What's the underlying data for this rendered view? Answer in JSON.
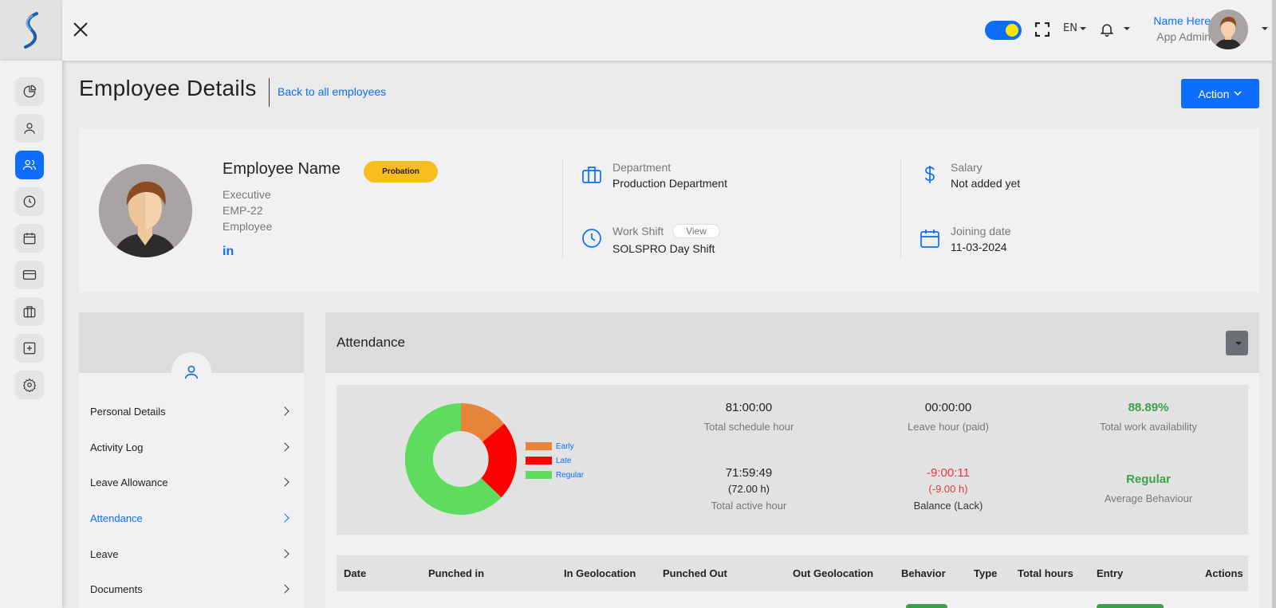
{
  "topbar": {
    "language": "EN",
    "user_name": "Name Here",
    "user_role": "App Admin"
  },
  "header": {
    "title": "Employee Details",
    "back_link": "Back to all employees",
    "action_label": "Action"
  },
  "profile": {
    "name": "Employee Name",
    "status_badge": "Probation",
    "designation": "Executive",
    "employee_id": "EMP-22",
    "role": "Employee",
    "linkedin": "in",
    "department_label": "Department",
    "department_value": "Production Department",
    "work_shift_label": "Work Shift",
    "work_shift_view": "View",
    "work_shift_value": "SOLSPRO Day Shift",
    "salary_label": "Salary",
    "salary_value": "Not added yet",
    "joining_label": "Joining date",
    "joining_value": "11-03-2024"
  },
  "menu": {
    "items": [
      {
        "label": "Personal Details"
      },
      {
        "label": "Activity Log"
      },
      {
        "label": "Leave Allowance"
      },
      {
        "label": "Attendance"
      },
      {
        "label": "Leave"
      },
      {
        "label": "Documents"
      }
    ],
    "active": "Attendance"
  },
  "attendance": {
    "title": "Attendance",
    "legend": [
      "Early",
      "Late",
      "Regular"
    ],
    "colors": {
      "early": "#e8833a",
      "late": "#ff0000",
      "regular": "#5ddc5d"
    },
    "stats": {
      "schedule_value": "81:00:00",
      "schedule_label": "Total schedule hour",
      "leave_value": "00:00:00",
      "leave_label": "Leave hour (paid)",
      "availability_value": "88.89%",
      "availability_label": "Total work availability",
      "active_value": "71:59:49",
      "active_hours": "(72.00 h)",
      "active_label": "Total active hour",
      "balance_value": "-9:00:11",
      "balance_hours": "(-9.00 h)",
      "balance_label": "Balance (Lack)",
      "behaviour_value": "Regular",
      "behaviour_label": "Average Behaviour"
    },
    "table_headers": [
      "Date",
      "Punched in",
      "In Geolocation",
      "Punched Out",
      "Out Geolocation",
      "Behavior",
      "Type",
      "Total hours",
      "Entry",
      "Actions"
    ]
  }
}
